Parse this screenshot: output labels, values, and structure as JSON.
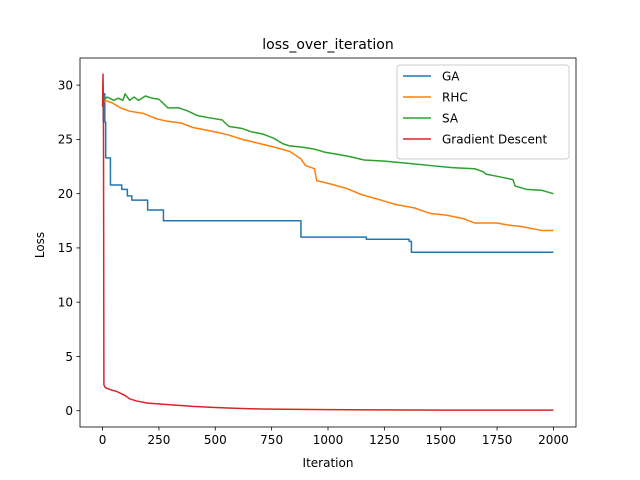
{
  "chart_data": {
    "type": "line",
    "title": "loss_over_iteration",
    "xlabel": "Iteration",
    "ylabel": "Loss",
    "xlim": [
      -100,
      2100
    ],
    "ylim": [
      -1.5,
      32.5
    ],
    "xticks": [
      0,
      250,
      500,
      750,
      1000,
      1250,
      1500,
      1750,
      2000
    ],
    "yticks": [
      0,
      5,
      10,
      15,
      20,
      25,
      30
    ],
    "grid": false,
    "legend_position": "upper right",
    "series": [
      {
        "name": "GA",
        "color": "#1f77b4",
        "step": true,
        "points": [
          [
            0,
            26.6
          ],
          [
            3,
            29.2
          ],
          [
            10,
            26.6
          ],
          [
            14,
            23.3
          ],
          [
            35,
            20.8
          ],
          [
            85,
            20.4
          ],
          [
            110,
            19.8
          ],
          [
            130,
            19.4
          ],
          [
            200,
            18.5
          ],
          [
            270,
            17.5
          ],
          [
            880,
            16.0
          ],
          [
            1170,
            15.8
          ],
          [
            1360,
            15.6
          ],
          [
            1370,
            14.6
          ],
          [
            2000,
            14.6
          ]
        ]
      },
      {
        "name": "RHC",
        "color": "#ff7f0e",
        "points": [
          [
            0,
            28.3
          ],
          [
            10,
            28.6
          ],
          [
            40,
            28.4
          ],
          [
            80,
            27.9
          ],
          [
            120,
            27.6
          ],
          [
            180,
            27.4
          ],
          [
            240,
            26.9
          ],
          [
            280,
            26.7
          ],
          [
            350,
            26.5
          ],
          [
            400,
            26.1
          ],
          [
            450,
            25.9
          ],
          [
            520,
            25.6
          ],
          [
            560,
            25.4
          ],
          [
            620,
            25.0
          ],
          [
            700,
            24.6
          ],
          [
            760,
            24.3
          ],
          [
            830,
            23.9
          ],
          [
            880,
            23.2
          ],
          [
            900,
            22.6
          ],
          [
            940,
            22.3
          ],
          [
            950,
            21.2
          ],
          [
            1010,
            20.9
          ],
          [
            1080,
            20.5
          ],
          [
            1150,
            19.9
          ],
          [
            1220,
            19.5
          ],
          [
            1300,
            19.0
          ],
          [
            1380,
            18.7
          ],
          [
            1450,
            18.2
          ],
          [
            1530,
            18.0
          ],
          [
            1600,
            17.7
          ],
          [
            1650,
            17.3
          ],
          [
            1750,
            17.3
          ],
          [
            1800,
            17.1
          ],
          [
            1850,
            17.0
          ],
          [
            1900,
            16.8
          ],
          [
            1950,
            16.6
          ],
          [
            2000,
            16.6
          ]
        ]
      },
      {
        "name": "SA",
        "color": "#2ca02c",
        "points": [
          [
            0,
            28.5
          ],
          [
            20,
            28.9
          ],
          [
            50,
            28.6
          ],
          [
            70,
            28.8
          ],
          [
            90,
            28.6
          ],
          [
            100,
            29.2
          ],
          [
            120,
            28.6
          ],
          [
            140,
            28.9
          ],
          [
            160,
            28.6
          ],
          [
            190,
            29.0
          ],
          [
            220,
            28.8
          ],
          [
            250,
            28.7
          ],
          [
            270,
            28.3
          ],
          [
            290,
            27.9
          ],
          [
            340,
            27.9
          ],
          [
            380,
            27.6
          ],
          [
            420,
            27.2
          ],
          [
            470,
            27.0
          ],
          [
            530,
            26.8
          ],
          [
            560,
            26.2
          ],
          [
            620,
            26.0
          ],
          [
            660,
            25.7
          ],
          [
            710,
            25.5
          ],
          [
            760,
            25.1
          ],
          [
            800,
            24.6
          ],
          [
            830,
            24.4
          ],
          [
            880,
            24.3
          ],
          [
            940,
            24.1
          ],
          [
            990,
            23.8
          ],
          [
            1050,
            23.6
          ],
          [
            1100,
            23.4
          ],
          [
            1160,
            23.1
          ],
          [
            1250,
            23.0
          ],
          [
            1350,
            22.8
          ],
          [
            1450,
            22.6
          ],
          [
            1550,
            22.4
          ],
          [
            1650,
            22.3
          ],
          [
            1690,
            22.0
          ],
          [
            1700,
            21.8
          ],
          [
            1750,
            21.6
          ],
          [
            1820,
            21.3
          ],
          [
            1830,
            20.7
          ],
          [
            1880,
            20.4
          ],
          [
            1950,
            20.3
          ],
          [
            2000,
            20.0
          ]
        ]
      },
      {
        "name": "Gradient Descent",
        "color": "#d62728",
        "points": [
          [
            0,
            28.0
          ],
          [
            2,
            31.0
          ],
          [
            4,
            28.4
          ],
          [
            6,
            2.4
          ],
          [
            10,
            2.2
          ],
          [
            20,
            2.05
          ],
          [
            40,
            1.9
          ],
          [
            60,
            1.8
          ],
          [
            80,
            1.6
          ],
          [
            100,
            1.4
          ],
          [
            120,
            1.1
          ],
          [
            150,
            0.9
          ],
          [
            200,
            0.7
          ],
          [
            300,
            0.55
          ],
          [
            400,
            0.4
          ],
          [
            500,
            0.3
          ],
          [
            600,
            0.22
          ],
          [
            700,
            0.16
          ],
          [
            800,
            0.13
          ],
          [
            1000,
            0.1
          ],
          [
            1200,
            0.08
          ],
          [
            1500,
            0.06
          ],
          [
            1800,
            0.05
          ],
          [
            2000,
            0.05
          ]
        ]
      }
    ]
  }
}
